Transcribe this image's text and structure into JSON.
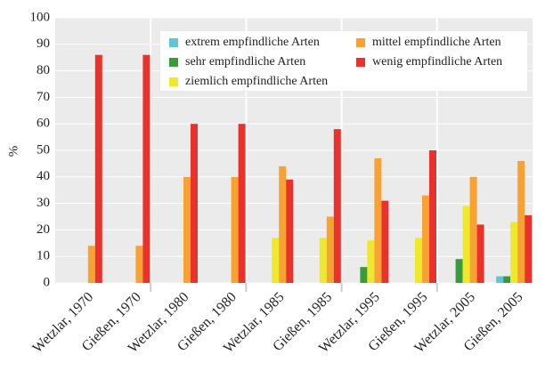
{
  "chart_data": {
    "type": "bar",
    "categories": [
      "Wetzlar, 1970",
      "Gießen, 1970",
      "Wetzlar, 1980",
      "Gießen, 1980",
      "Wetzlar, 1985",
      "Gießen, 1985",
      "Wetzlar, 1995",
      "Gießen, 1995",
      "Wetzlar, 2005",
      "Gießen, 2005"
    ],
    "series": [
      {
        "name": "extrem empfindliche Arten",
        "color": "#5ec6d6",
        "values": [
          0,
          0,
          0,
          0,
          0,
          0,
          0,
          0,
          0,
          2.5
        ]
      },
      {
        "name": "sehr empfindliche Arten",
        "color": "#3b9a3c",
        "values": [
          0,
          0,
          0,
          0,
          0,
          0,
          6,
          0,
          9,
          2.5
        ]
      },
      {
        "name": "ziemlich empfindliche Arten",
        "color": "#eee92c",
        "values": [
          0,
          0,
          0,
          0,
          17,
          17,
          16,
          17,
          29,
          23
        ]
      },
      {
        "name": "mittel empfindliche Arten",
        "color": "#f7a233",
        "values": [
          14,
          14,
          40,
          40,
          44,
          25,
          47,
          33,
          40,
          46
        ]
      },
      {
        "name": "wenig empfindliche Arten",
        "color": "#e9322b",
        "values": [
          86,
          86,
          60,
          60,
          39,
          58,
          31,
          50,
          22,
          25.5
        ]
      }
    ],
    "y_label": "%",
    "ylim": [
      0,
      100
    ],
    "yticks": [
      0,
      10,
      20,
      30,
      40,
      50,
      60,
      70,
      80,
      90,
      100
    ],
    "grid": true,
    "legend": "upper right"
  }
}
